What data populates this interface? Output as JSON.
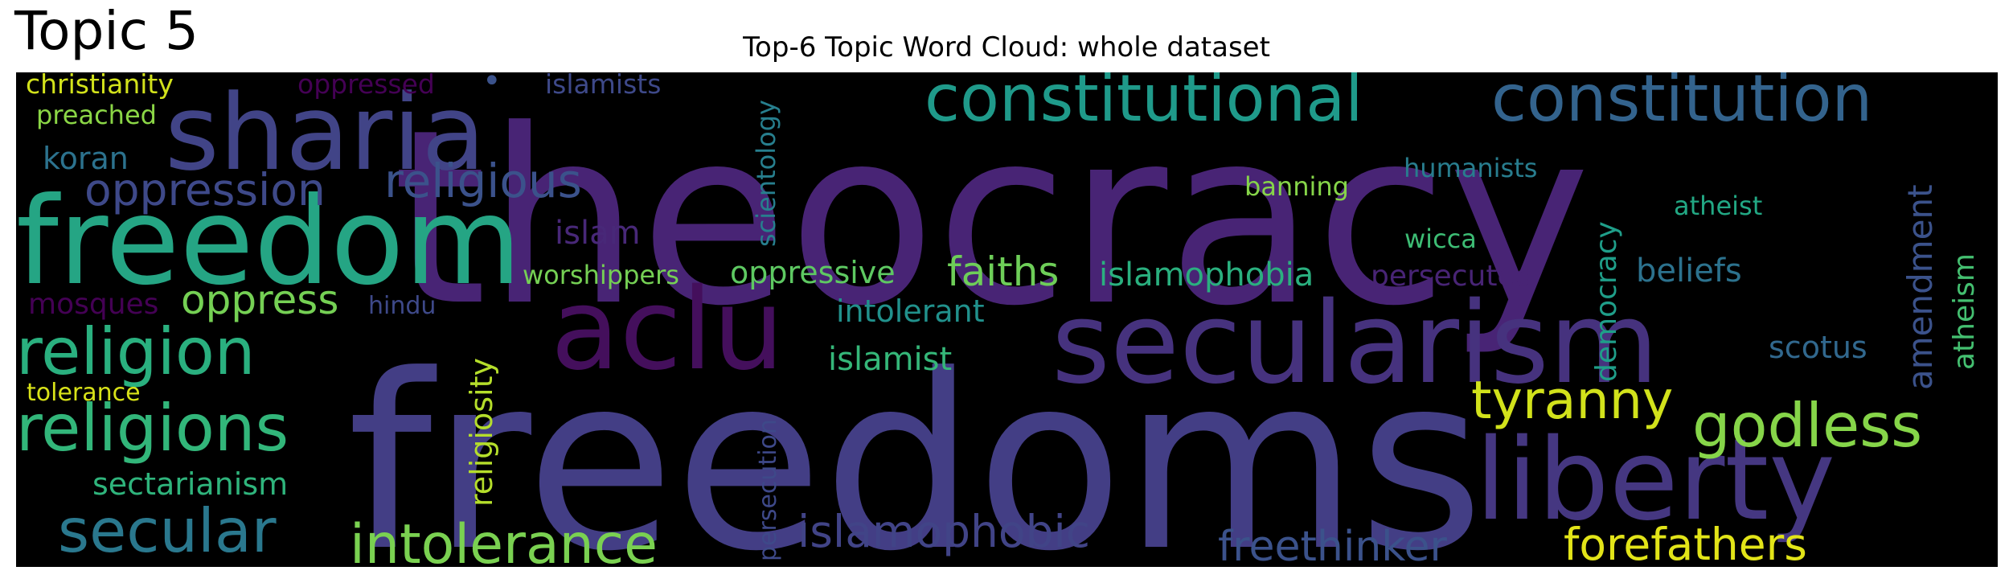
{
  "panel_label": "Topic 5",
  "title": "Top-6 Topic Word Cloud: whole dataset",
  "colors": {
    "page_background": "#ffffff",
    "cloud_background": "#000000"
  },
  "words": [
    {
      "text": "theocracy",
      "color": "#482475"
    },
    {
      "text": "freedoms",
      "color": "#433e85"
    },
    {
      "text": "freedom",
      "color": "#25a584"
    },
    {
      "text": "sharia",
      "color": "#414487"
    },
    {
      "text": "secularism",
      "color": "#46327e"
    },
    {
      "text": "liberty",
      "color": "#453781"
    },
    {
      "text": "aclu",
      "color": "#440f5c"
    },
    {
      "text": "constitutional",
      "color": "#1f9a8a"
    },
    {
      "text": "constitution",
      "color": "#33638d"
    },
    {
      "text": "religion",
      "color": "#2ab07f"
    },
    {
      "text": "religions",
      "color": "#32b67a"
    },
    {
      "text": "secular",
      "color": "#2a788e"
    },
    {
      "text": "intolerance",
      "color": "#7ad151"
    },
    {
      "text": "godless",
      "color": "#86d549"
    },
    {
      "text": "tyranny",
      "color": "#d2e21b"
    },
    {
      "text": "forefathers",
      "color": "#e2e418"
    },
    {
      "text": "oppression",
      "color": "#3e4989"
    },
    {
      "text": "religious",
      "color": "#3b528b"
    },
    {
      "text": "oppress",
      "color": "#75d054"
    },
    {
      "text": "islamophobic",
      "color": "#414487"
    },
    {
      "text": "freethinker",
      "color": "#3b528b"
    },
    {
      "text": "faiths",
      "color": "#6ece58"
    },
    {
      "text": "islamophobia",
      "color": "#2ab07f"
    },
    {
      "text": "oppressive",
      "color": "#5ec962"
    },
    {
      "text": "persecuted",
      "color": "#482475"
    },
    {
      "text": "amendment",
      "color": "#3b528b"
    },
    {
      "text": "beliefs",
      "color": "#2c728e"
    },
    {
      "text": "intolerant",
      "color": "#21918c"
    },
    {
      "text": "islamist",
      "color": "#35b779"
    },
    {
      "text": "sectarianism",
      "color": "#2fb47c"
    },
    {
      "text": "religiosity",
      "color": "#b5de2b"
    },
    {
      "text": "democracy",
      "color": "#1f9e89"
    },
    {
      "text": "atheism",
      "color": "#44bf70"
    },
    {
      "text": "scientology",
      "color": "#277f8e"
    },
    {
      "text": "scotus",
      "color": "#31688e"
    },
    {
      "text": "koran",
      "color": "#2c728e"
    },
    {
      "text": "islam",
      "color": "#482878"
    },
    {
      "text": "mosques",
      "color": "#440154"
    },
    {
      "text": "worshippers",
      "color": "#75d054"
    },
    {
      "text": "persecution",
      "color": "#3e4989"
    },
    {
      "text": "christianity",
      "color": "#d2e21b"
    },
    {
      "text": "preached",
      "color": "#8bd646"
    },
    {
      "text": "banning",
      "color": "#86d549"
    },
    {
      "text": "humanists",
      "color": "#287d8e"
    },
    {
      "text": "atheist",
      "color": "#22a884"
    },
    {
      "text": "wicca",
      "color": "#3dbc74"
    },
    {
      "text": "islamists",
      "color": "#3e4989"
    },
    {
      "text": "oppressed",
      "color": "#440154"
    },
    {
      "text": "hindu",
      "color": "#3e4989"
    },
    {
      "text": "tolerance",
      "color": "#d8e219"
    },
    {
      "text": "•",
      "color": "#3b528b"
    }
  ]
}
